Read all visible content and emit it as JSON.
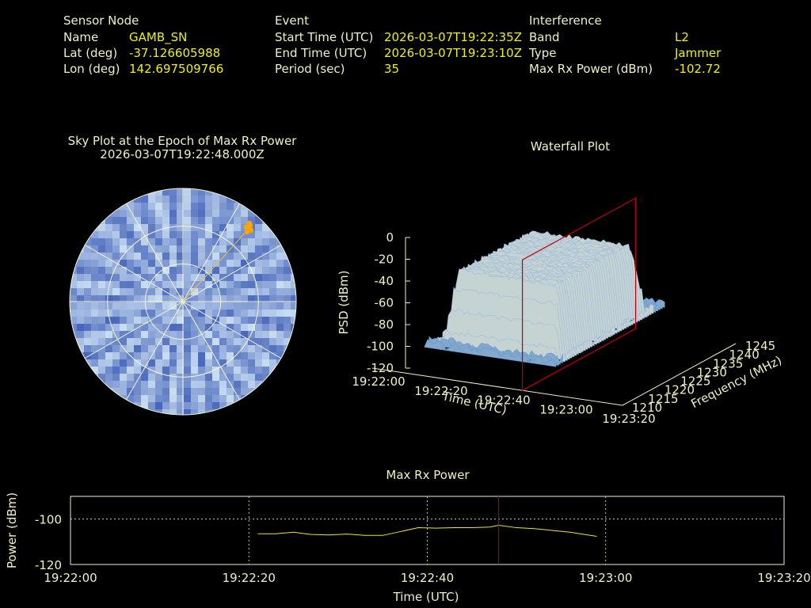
{
  "header": {
    "sensor": {
      "heading": "Sensor Node",
      "rows": [
        {
          "label": "Name",
          "value": "GAMB_SN"
        },
        {
          "label": "Lat (deg)",
          "value": "-37.126605988"
        },
        {
          "label": "Lon (deg)",
          "value": "142.697509766"
        }
      ]
    },
    "event": {
      "heading": "Event",
      "rows": [
        {
          "label": "Start Time (UTC)",
          "value": "2026-03-07T19:22:35Z"
        },
        {
          "label": "End Time (UTC)",
          "value": "2026-03-07T19:23:10Z"
        },
        {
          "label": "Period (sec)",
          "value": "35"
        }
      ]
    },
    "interference": {
      "heading": "Interference",
      "rows": [
        {
          "label": "Band",
          "value": "L2"
        },
        {
          "label": "Type",
          "value": "Jammer"
        },
        {
          "label": "Max Rx Power (dBm)",
          "value": "-102.72"
        }
      ]
    }
  },
  "colors": {
    "text": "#f0f0c0",
    "value": "#f0f000",
    "trace": "#f0e040",
    "marker": "#c00000",
    "sky_dark": "#3050b0",
    "sky_light": "#c8ddf2",
    "source": "#ffa500"
  },
  "chart_data": [
    {
      "type": "scatter",
      "title": "Sky Plot at the Epoch of Max Rx Power",
      "subtitle": "2026-03-07T19:22:48.000Z",
      "projection": "polar",
      "source_direction": {
        "azimuth_deg": 42,
        "elevation_deg": 12
      }
    },
    {
      "type": "area",
      "title": "Waterfall Plot",
      "xlabel": "Time (UTC)",
      "ylabel": "Frequency (MHz)",
      "zlabel": "PSD (dBm)",
      "x_ticks": [
        "19:22:00",
        "19:22:20",
        "19:22:40",
        "19:23:00",
        "19:23:20"
      ],
      "y_ticks": [
        "1210",
        "1215",
        "1220",
        "1225",
        "1230",
        "1235",
        "1240",
        "1245"
      ],
      "z_ticks": [
        "0",
        "-20",
        "-40",
        "-60",
        "-80",
        "-100",
        "-120"
      ],
      "zlim": [
        -120,
        0
      ],
      "signal_window": {
        "time_start": "19:22:19",
        "time_end": "19:22:56",
        "freq_start": 1213,
        "freq_end": 1241
      },
      "peak_psd_dbm": -28,
      "floor_psd_dbm": -95,
      "marker_time": "19:22:48"
    },
    {
      "type": "line",
      "title": "Max Rx Power",
      "xlabel": "Time (UTC)",
      "ylabel": "Power (dBm)",
      "x_ticks": [
        "19:22:00",
        "19:22:20",
        "19:22:40",
        "19:23:00",
        "19:23:20"
      ],
      "y_ticks": [
        "-100",
        "-120"
      ],
      "ylim": [
        -120,
        -90
      ],
      "grid": true,
      "marker_time": "19:22:48",
      "series": [
        {
          "x": [
            "19:22:21",
            "19:22:23",
            "19:22:25",
            "19:22:27",
            "19:22:29",
            "19:22:31",
            "19:22:33",
            "19:22:35",
            "19:22:37",
            "19:22:39",
            "19:22:41",
            "19:22:43",
            "19:22:45",
            "19:22:47",
            "19:22:48",
            "19:22:50",
            "19:22:52",
            "19:22:54",
            "19:22:56",
            "19:22:58",
            "19:22:59"
          ],
          "values": [
            -106.5,
            -106.5,
            -105.8,
            -106.8,
            -107.0,
            -106.6,
            -107.2,
            -107.2,
            -105.5,
            -103.8,
            -104.0,
            -103.8,
            -103.8,
            -103.5,
            -102.72,
            -103.8,
            -104.2,
            -105.0,
            -105.8,
            -107.0,
            -107.6
          ]
        }
      ]
    }
  ]
}
